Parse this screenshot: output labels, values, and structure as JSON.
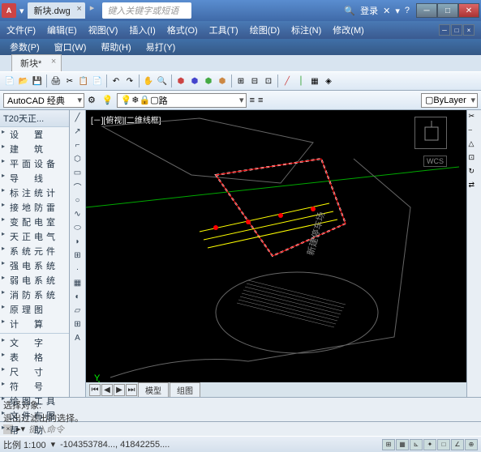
{
  "titlebar": {
    "logo": "A",
    "tab": "新块.dwg",
    "search_placeholder": "键入关键字或短语",
    "login": "登录"
  },
  "menu1": [
    "文件(F)",
    "编辑(E)",
    "视图(V)",
    "插入(I)",
    "格式(O)",
    "工具(T)",
    "绘图(D)",
    "标注(N)",
    "修改(M)"
  ],
  "menu2": [
    "参数(P)",
    "窗口(W)",
    "帮助(H)",
    "易打(Y)"
  ],
  "doctab": "新块*",
  "propbar": {
    "style": "AutoCAD 经典",
    "layer": "路",
    "bylayer": "ByLayer"
  },
  "leftpanel": {
    "title": "T20天正...",
    "items": [
      "设　置",
      "建　筑",
      "平面设备",
      "导　线",
      "标注统计",
      "接地防雷",
      "变配电室",
      "天正电气",
      "系统元件",
      "强电系统",
      "弱电系统",
      "消防系统",
      "原理图",
      "计　算",
      "",
      "文　字",
      "表　格",
      "尺　寸",
      "符　号",
      "绘图工具",
      "文件布图",
      "帮　助"
    ]
  },
  "canvas": {
    "viewlabel": "[－][俯视][二维线框]",
    "wcs": "WCS",
    "xlabel": "X",
    "ylabel": "Y",
    "btabs": [
      "模型",
      "组图"
    ],
    "bg": "#000000",
    "road_color": "#666666",
    "guide_color": "#00aa00",
    "building_color": "#888888",
    "annotation_color": "#ffff00",
    "marker_color": "#ff0000"
  },
  "cmdline": {
    "line1": "选择对象:",
    "line2": "退出过滤出的选择。",
    "prompt": "键入命令"
  },
  "statusbar": {
    "scale": "比例 1:100",
    "coords": "-104353784..., 41842255...."
  }
}
